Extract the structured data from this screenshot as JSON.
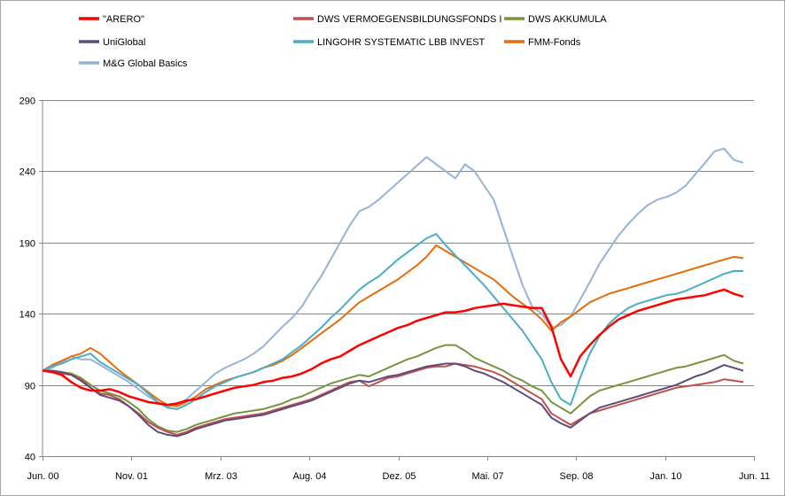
{
  "chart_data": {
    "type": "line",
    "title": "",
    "xlabel": "",
    "ylabel": "",
    "ylim": [
      40,
      290
    ],
    "y_ticks": [
      "40",
      "90",
      "140",
      "190",
      "240",
      "290"
    ],
    "x_ticks": [
      "Jun. 00",
      "Nov. 01",
      "Mrz. 03",
      "Aug. 04",
      "Dez. 05",
      "Mai. 07",
      "Sep. 08",
      "Jan. 10",
      "Jun. 11"
    ],
    "grid": "horizontal",
    "legend_position": "top",
    "series": [
      {
        "name": "\"ARERO\"",
        "color": "#ff0000",
        "values": [
          100,
          99,
          97,
          92,
          88,
          86,
          86,
          87,
          85,
          82,
          80,
          78,
          77,
          76,
          77,
          79,
          80,
          82,
          84,
          86,
          88,
          89,
          90,
          92,
          93,
          95,
          96,
          98,
          101,
          105,
          108,
          110,
          114,
          118,
          121,
          124,
          127,
          130,
          132,
          135,
          137,
          139,
          141,
          141,
          142,
          144,
          145,
          146,
          147,
          146,
          145,
          144,
          144,
          131,
          108,
          96,
          110,
          118,
          125,
          131,
          136,
          139,
          142,
          144,
          146,
          148,
          150,
          151,
          152,
          153,
          155,
          157,
          154,
          152
        ]
      },
      {
        "name": "DWS VERMOEGENSBILDUNGSFONDS  I",
        "color": "#c0504d",
        "values": [
          100,
          99,
          98,
          97,
          94,
          88,
          84,
          83,
          80,
          75,
          70,
          64,
          60,
          57,
          55,
          57,
          60,
          62,
          64,
          66,
          67,
          68,
          69,
          70,
          72,
          74,
          76,
          78,
          80,
          83,
          86,
          89,
          92,
          93,
          89,
          92,
          95,
          96,
          98,
          100,
          102,
          103,
          103,
          105,
          104,
          103,
          101,
          99,
          96,
          92,
          88,
          84,
          80,
          70,
          66,
          62,
          66,
          70,
          72,
          74,
          76,
          78,
          80,
          82,
          84,
          86,
          88,
          89,
          90,
          91,
          92,
          94,
          93,
          92
        ]
      },
      {
        "name": "DWS AKKUMULA",
        "color": "#77933c",
        "values": [
          100,
          100,
          99,
          98,
          95,
          90,
          86,
          84,
          82,
          78,
          73,
          66,
          61,
          58,
          57,
          59,
          62,
          64,
          66,
          68,
          70,
          71,
          72,
          73,
          75,
          77,
          80,
          82,
          85,
          88,
          91,
          93,
          95,
          97,
          96,
          99,
          102,
          105,
          108,
          110,
          113,
          116,
          118,
          118,
          114,
          109,
          106,
          103,
          100,
          96,
          93,
          89,
          86,
          78,
          74,
          70,
          76,
          82,
          86,
          88,
          90,
          92,
          94,
          96,
          98,
          100,
          102,
          103,
          105,
          107,
          109,
          111,
          107,
          105
        ]
      },
      {
        "name": "UniGlobal",
        "color": "#604a7b",
        "values": [
          100,
          100,
          99,
          97,
          93,
          88,
          83,
          81,
          79,
          75,
          69,
          62,
          57,
          55,
          54,
          56,
          59,
          61,
          63,
          65,
          66,
          67,
          68,
          69,
          71,
          73,
          75,
          77,
          79,
          82,
          85,
          88,
          91,
          93,
          92,
          94,
          96,
          97,
          99,
          101,
          103,
          104,
          105,
          105,
          103,
          100,
          98,
          95,
          92,
          88,
          84,
          80,
          76,
          67,
          63,
          60,
          65,
          70,
          74,
          76,
          78,
          80,
          82,
          84,
          86,
          88,
          90,
          93,
          96,
          98,
          101,
          104,
          102,
          100
        ]
      },
      {
        "name": "LINGOHR SYSTEMATIC  LBB INVEST",
        "color": "#4bacc6",
        "values": [
          100,
          103,
          105,
          108,
          110,
          112,
          106,
          102,
          98,
          94,
          90,
          84,
          78,
          74,
          73,
          76,
          80,
          85,
          89,
          92,
          95,
          97,
          99,
          102,
          105,
          108,
          113,
          118,
          124,
          130,
          137,
          143,
          150,
          157,
          162,
          166,
          172,
          178,
          183,
          188,
          193,
          196,
          188,
          181,
          174,
          167,
          160,
          152,
          144,
          136,
          128,
          118,
          108,
          92,
          80,
          76,
          95,
          112,
          124,
          133,
          139,
          144,
          147,
          149,
          151,
          153,
          154,
          156,
          159,
          162,
          165,
          168,
          170,
          170
        ]
      },
      {
        "name": "FMM-Fonds",
        "color": "#e46c0a",
        "values": [
          100,
          104,
          107,
          110,
          112,
          116,
          112,
          106,
          100,
          95,
          90,
          85,
          80,
          76,
          75,
          78,
          82,
          87,
          90,
          93,
          95,
          97,
          99,
          102,
          104,
          107,
          111,
          116,
          121,
          126,
          131,
          136,
          142,
          148,
          152,
          156,
          160,
          164,
          169,
          174,
          180,
          188,
          184,
          180,
          176,
          172,
          168,
          164,
          158,
          152,
          147,
          142,
          136,
          128,
          134,
          138,
          143,
          148,
          151,
          154,
          156,
          158,
          160,
          162,
          164,
          166,
          168,
          170,
          172,
          174,
          176,
          178,
          180,
          179
        ]
      },
      {
        "name": "M&G Global Basics",
        "color": "#95b3d7",
        "values": [
          100,
          102,
          106,
          110,
          108,
          108,
          104,
          100,
          96,
          92,
          87,
          82,
          78,
          75,
          76,
          80,
          86,
          92,
          98,
          102,
          105,
          108,
          112,
          117,
          124,
          131,
          137,
          145,
          156,
          166,
          178,
          190,
          202,
          212,
          215,
          220,
          226,
          232,
          238,
          244,
          250,
          245,
          240,
          235,
          245,
          240,
          230,
          220,
          200,
          180,
          160,
          145,
          140,
          130,
          132,
          138,
          150,
          162,
          175,
          185,
          195,
          203,
          210,
          216,
          220,
          222,
          225,
          230,
          238,
          246,
          254,
          256,
          248,
          246
        ]
      }
    ]
  }
}
